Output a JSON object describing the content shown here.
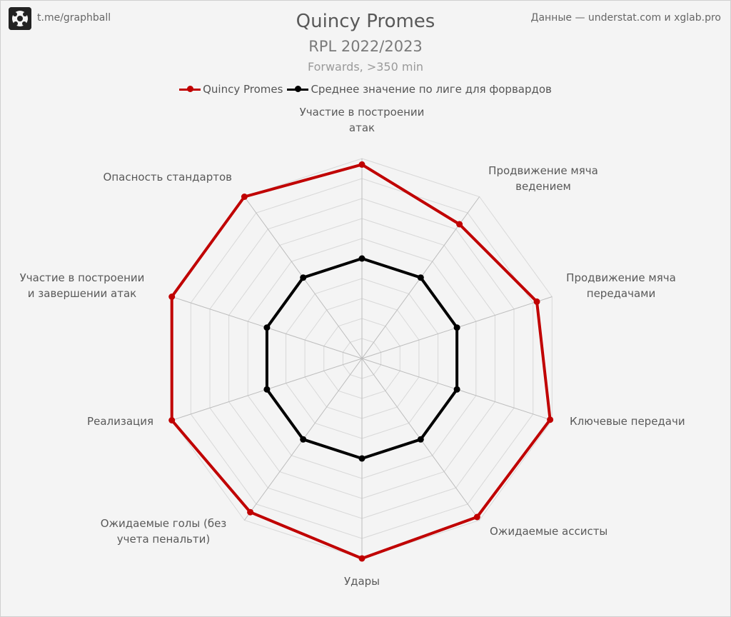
{
  "header": {
    "brand": "t.me/graphball",
    "source": "Данные — understat.com и xglab.pro"
  },
  "chart_data": {
    "type": "radar",
    "title": "Quincy Promes",
    "subtitle": "RPL 2022/2023",
    "subsubtitle": "Forwards, >350 min",
    "categories": [
      "Участие в построении атак",
      "Продвижение мяча ведением",
      "Продвижение мяча передачами",
      "Ключевые передачи",
      "Ожидаемые ассисты",
      "Удары",
      "Ожидаемые голы (без учета пенальти)",
      "Реализация",
      "Участие в построении и завершении атак",
      "Опасность стандартов"
    ],
    "category_lines": [
      [
        "Участие в построении",
        "атак"
      ],
      [
        "Продвижение мяча",
        "ведением"
      ],
      [
        "Продвижение мяча",
        "передачами"
      ],
      [
        "Ключевые передачи"
      ],
      [
        "Ожидаемые ассисты"
      ],
      [
        "Удары"
      ],
      [
        "Ожидаемые голы (без",
        "учета пенальти)"
      ],
      [
        "Реализация"
      ],
      [
        "Участие в построении",
        "и завершении атак"
      ],
      [
        "Опасность стандартов"
      ]
    ],
    "rmax": 10,
    "rings": 10,
    "grid": true,
    "legend_position": "top-center",
    "series": [
      {
        "name": "Quincy Promes",
        "color": "#c00000",
        "values": [
          9.7,
          8.3,
          9.2,
          9.9,
          9.8,
          10.0,
          9.5,
          10.0,
          10.0,
          10.0
        ]
      },
      {
        "name": "Среднее значение по лиге для форвардов",
        "color": "#000000",
        "values": [
          5.0,
          5.0,
          5.0,
          5.0,
          5.0,
          5.0,
          5.0,
          5.0,
          5.0,
          5.0
        ]
      }
    ]
  }
}
